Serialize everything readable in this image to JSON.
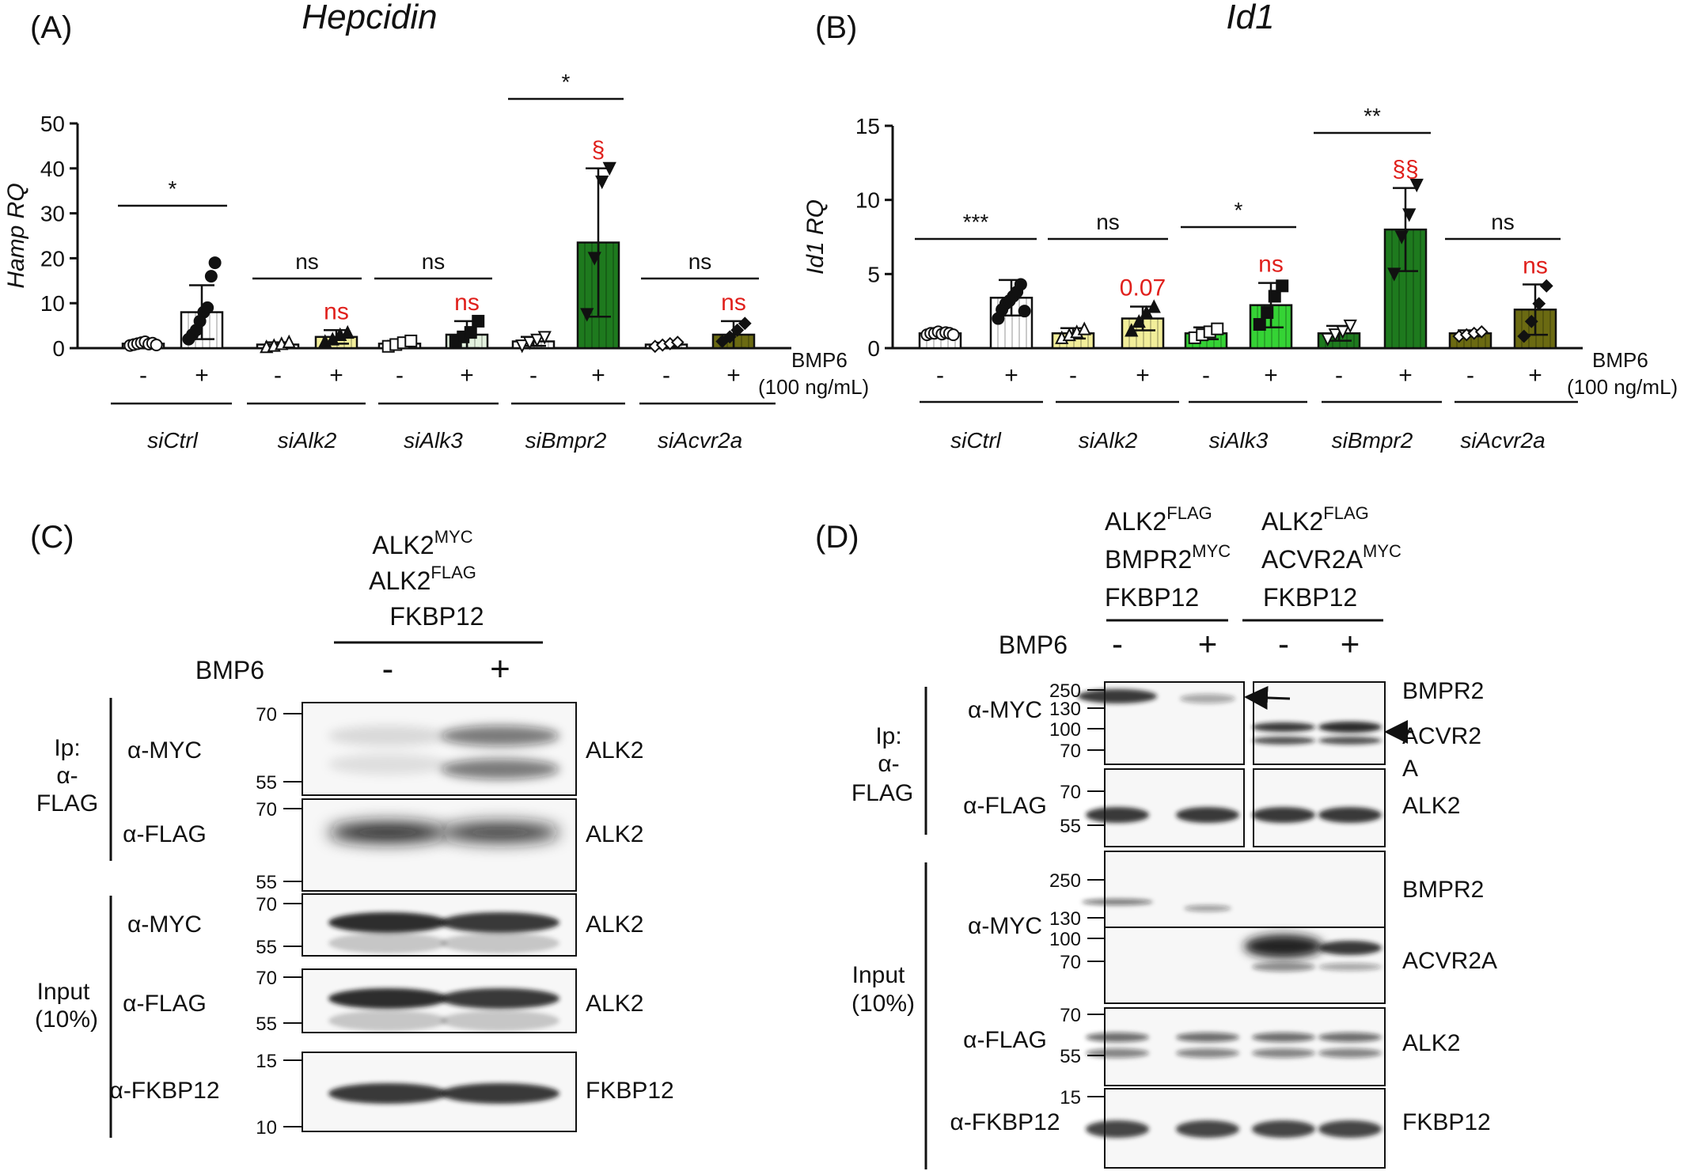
{
  "panels": {
    "A": {
      "tag": "(A)",
      "title": "Hepcidin",
      "ylabel": "Hamp RQ"
    },
    "B": {
      "tag": "(B)",
      "title": "Id1",
      "ylabel": "Id1 RQ"
    },
    "C": {
      "tag": "(C)"
    },
    "D": {
      "tag": "(D)"
    }
  },
  "treatment": {
    "label": "BMP6",
    "conc": "(100 ng/mL)",
    "minus": "-",
    "plus": "+"
  },
  "chart_data": [
    {
      "type": "bar",
      "panel": "A",
      "title": "Hepcidin",
      "xlabel": "",
      "ylabel": "Hamp RQ",
      "ylim": [
        0,
        50
      ],
      "yticks": [
        0,
        10,
        20,
        30,
        40,
        50
      ],
      "groups": [
        "siCtrl",
        "siAlk2",
        "siAlk3",
        "siBmpr2",
        "siAcvr2a"
      ],
      "conditions": [
        "-",
        "+"
      ],
      "colors": [
        "#ffffff",
        "#f2ee9a",
        "#e3f2df",
        "#1e7a1e",
        "#6b6a12"
      ],
      "minus_colors": [
        "#ffffff",
        "#ffffff",
        "#ffffff",
        "#ffffff",
        "#ffffff"
      ],
      "means": [
        [
          1,
          8
        ],
        [
          0.8,
          2.5
        ],
        [
          1,
          3
        ],
        [
          1.5,
          23.5
        ],
        [
          0.8,
          3
        ]
      ],
      "errors": [
        [
          0.4,
          6
        ],
        [
          0.5,
          1.5
        ],
        [
          0.6,
          3
        ],
        [
          1,
          16.5
        ],
        [
          0.4,
          3
        ]
      ],
      "points": [
        [
          [
            0.6,
            0.8,
            1.0,
            1.2,
            1.4,
            0.9,
            1.1,
            0.7
          ],
          [
            2,
            3,
            4,
            6,
            8,
            9,
            16,
            19
          ]
        ],
        [
          [
            0.3,
            0.6,
            1.0,
            1.4
          ],
          [
            1.5,
            2.0,
            3.0,
            3.5
          ]
        ],
        [
          [
            0.4,
            0.8,
            1.2,
            1.6
          ],
          [
            1.5,
            2.5,
            3.5,
            6.0
          ]
        ],
        [
          [
            0.5,
            1.2,
            1.8,
            2.4
          ],
          [
            7.5,
            20,
            37,
            40
          ]
        ],
        [
          [
            0.4,
            0.7,
            1.0,
            1.3
          ],
          [
            1.5,
            2.5,
            4.0,
            5.5
          ]
        ]
      ],
      "markers": [
        "circle",
        "triangle",
        "square",
        "down-triangle",
        "diamond"
      ],
      "comparisons": [
        "*",
        "ns",
        "ns",
        "*",
        "ns"
      ],
      "annotations_vs_ctrl": [
        "",
        "ns",
        "ns",
        "§",
        "ns"
      ]
    },
    {
      "type": "bar",
      "panel": "B",
      "title": "Id1",
      "xlabel": "",
      "ylabel": "Id1 RQ",
      "ylim": [
        0,
        15
      ],
      "yticks": [
        0,
        5,
        10,
        15
      ],
      "groups": [
        "siCtrl",
        "siAlk2",
        "siAlk3",
        "siBmpr2",
        "siAcvr2a"
      ],
      "conditions": [
        "-",
        "+"
      ],
      "colors": [
        "#ffffff",
        "#f2ee9a",
        "#35d335",
        "#1e7a1e",
        "#6b6a12"
      ],
      "minus_colors": [
        "#ffffff",
        "#f2ee9a",
        "#35d335",
        "#1e7a1e",
        "#6b6a12"
      ],
      "means": [
        [
          1.0,
          3.4
        ],
        [
          1.0,
          2.0
        ],
        [
          1.0,
          2.9
        ],
        [
          1.0,
          8.0
        ],
        [
          1.0,
          2.6
        ]
      ],
      "errors": [
        [
          0.2,
          1.2
        ],
        [
          0.35,
          0.8
        ],
        [
          0.4,
          1.5
        ],
        [
          0.5,
          2.8
        ],
        [
          0.2,
          1.7
        ]
      ],
      "points": [
        [
          [
            0.9,
            1.0,
            1.0,
            1.1,
            0.95,
            1.05,
            1.0,
            0.9
          ],
          [
            2.0,
            2.6,
            3.0,
            3.2,
            3.5,
            3.8,
            4.3,
            2.5
          ]
        ],
        [
          [
            0.7,
            0.9,
            1.1,
            1.3
          ],
          [
            1.2,
            1.8,
            2.4,
            2.8
          ]
        ],
        [
          [
            0.7,
            0.9,
            1.1,
            1.3
          ],
          [
            1.6,
            2.4,
            3.5,
            4.2
          ]
        ],
        [
          [
            0.6,
            0.9,
            1.1,
            1.5
          ],
          [
            5.0,
            7.5,
            9.0,
            11.0
          ]
        ],
        [
          [
            0.8,
            0.9,
            1.0,
            1.1
          ],
          [
            0.8,
            1.8,
            3.0,
            4.2
          ]
        ]
      ],
      "markers": [
        "circle",
        "triangle",
        "square",
        "down-triangle",
        "diamond"
      ],
      "comparisons": [
        "***",
        "ns",
        "*",
        "**",
        "ns"
      ],
      "annotations_vs_ctrl": [
        "",
        "0.07",
        "ns",
        "§§",
        "ns"
      ]
    }
  ],
  "blotC": {
    "constructs": [
      "ALK2",
      "MYC",
      "ALK2",
      "FLAG",
      "FKBP12"
    ],
    "treatment_label": "BMP6",
    "lanes": [
      "-",
      "+"
    ],
    "section_ip": [
      "Ip:",
      "α-",
      "FLAG"
    ],
    "section_input": [
      "Input",
      "(10%)"
    ],
    "rows": [
      {
        "antibody": "α-MYC",
        "band": "ALK2",
        "markers": [
          "70",
          "55"
        ]
      },
      {
        "antibody": "α-FLAG",
        "band": "ALK2",
        "markers": [
          "70",
          "55"
        ]
      },
      {
        "antibody": "α-MYC",
        "band": "ALK2",
        "markers": [
          "70",
          "55"
        ]
      },
      {
        "antibody": "α-FLAG",
        "band": "ALK2",
        "markers": [
          "70",
          "55"
        ]
      },
      {
        "antibody": "α-FKBP12",
        "band": "FKBP12",
        "markers": [
          "15",
          "10"
        ]
      }
    ]
  },
  "blotD": {
    "construct_sets": [
      [
        "ALK2",
        "FLAG",
        "BMPR2",
        "MYC",
        "FKBP12"
      ],
      [
        "ALK2",
        "FLAG",
        "ACVR2A",
        "MYC",
        "FKBP12"
      ]
    ],
    "treatment_label": "BMP6",
    "lanes": [
      "-",
      "+",
      "-",
      "+"
    ],
    "section_ip": [
      "Ip:",
      "α-",
      "FLAG"
    ],
    "section_input": [
      "Input",
      "(10%)"
    ],
    "rows": [
      {
        "antibody": "α-MYC",
        "bands": [
          "BMPR2",
          "ACVR2",
          "A"
        ],
        "markers": [
          "250",
          "130",
          "100",
          "70"
        ]
      },
      {
        "antibody": "α-FLAG",
        "bands": [
          "ALK2"
        ],
        "markers": [
          "70",
          "55"
        ]
      },
      {
        "antibody": "α-MYC",
        "bands": [
          "BMPR2",
          "ACVR2A"
        ],
        "markers": [
          "250",
          "130",
          "100",
          "70"
        ]
      },
      {
        "antibody": "α-FLAG",
        "bands": [
          "ALK2"
        ],
        "markers": [
          "70",
          "55"
        ]
      },
      {
        "antibody": "α-FKBP12",
        "bands": [
          "FKBP12"
        ],
        "markers": [
          "15"
        ]
      }
    ]
  }
}
